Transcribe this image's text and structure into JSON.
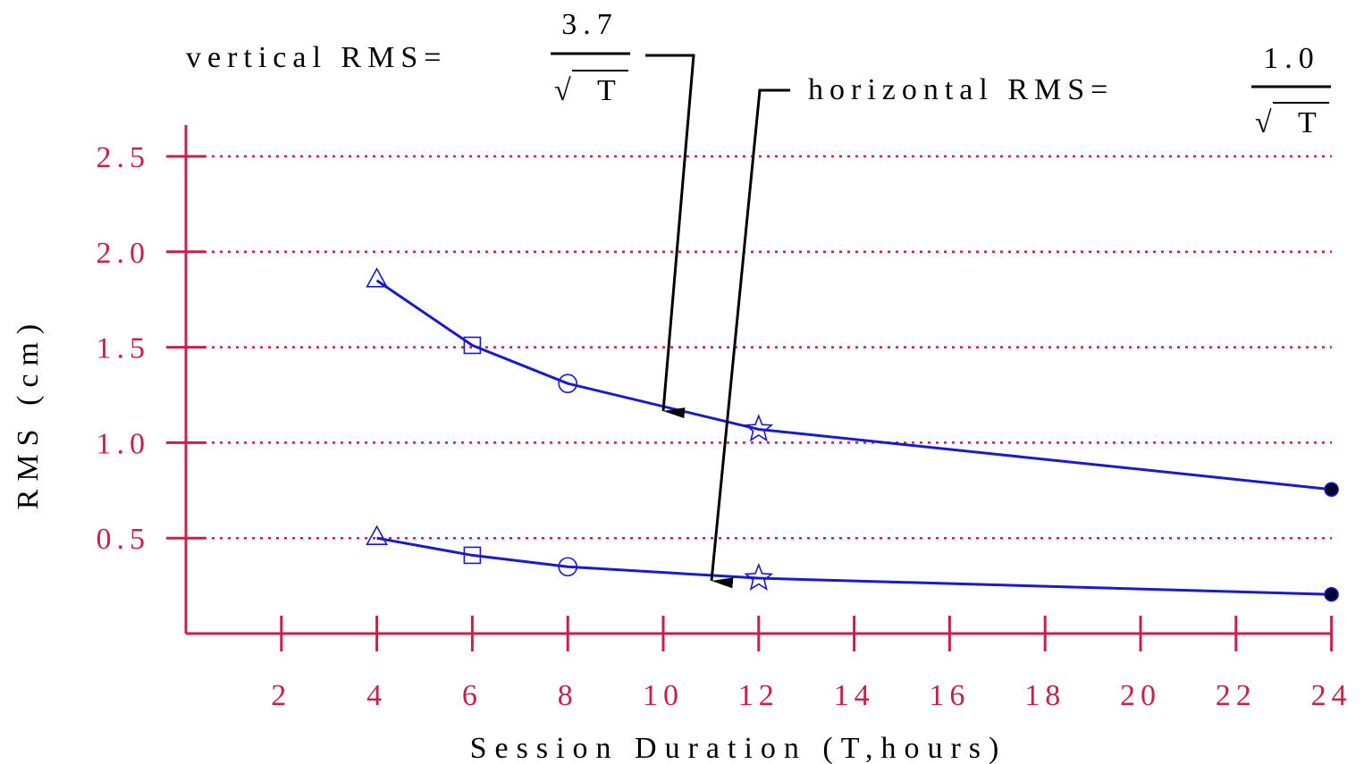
{
  "chart_data": {
    "type": "line",
    "xlabel": "Session Duration (T,hours)",
    "ylabel": "RMS (cm)",
    "x_ticks": [
      2,
      4,
      6,
      8,
      10,
      12,
      14,
      16,
      18,
      20,
      22,
      24
    ],
    "y_ticks": [
      0.5,
      1.0,
      1.5,
      2.0,
      2.5
    ],
    "y_tick_labels": [
      "0.5",
      "1.0",
      "1.5",
      "2.0",
      "2.5"
    ],
    "xlim": [
      0,
      24
    ],
    "ylim": [
      0,
      2.5
    ],
    "grid": "horizontal dotted",
    "series": [
      {
        "x": [
          4,
          6,
          8,
          12,
          24
        ],
        "values": [
          1.85,
          1.51,
          1.31,
          1.07,
          0.755
        ],
        "markers": [
          "triangle",
          "square",
          "circle",
          "star",
          "filled-circle"
        ]
      },
      {
        "x": [
          4,
          6,
          8,
          12,
          24
        ],
        "values": [
          0.5,
          0.41,
          0.35,
          0.29,
          0.205
        ],
        "markers": [
          "triangle",
          "square",
          "circle",
          "star",
          "filled-circle"
        ]
      }
    ],
    "annotations": [
      {
        "prefix": "vertical RMS=",
        "numerator": "3.7",
        "radical": "√",
        "denominator": "T",
        "points_to": {
          "x": 10,
          "y": 1.17
        }
      },
      {
        "prefix": "horizontal RMS=",
        "numerator": "1.0",
        "radical": "√",
        "denominator": "T",
        "points_to": {
          "x": 11,
          "y": 0.29
        }
      }
    ],
    "colors": {
      "axis": "#c8204a",
      "grid": "#c8204a",
      "tick_labels": "#c8204a",
      "series": "#1a1acc",
      "annotation": "#000000"
    }
  }
}
